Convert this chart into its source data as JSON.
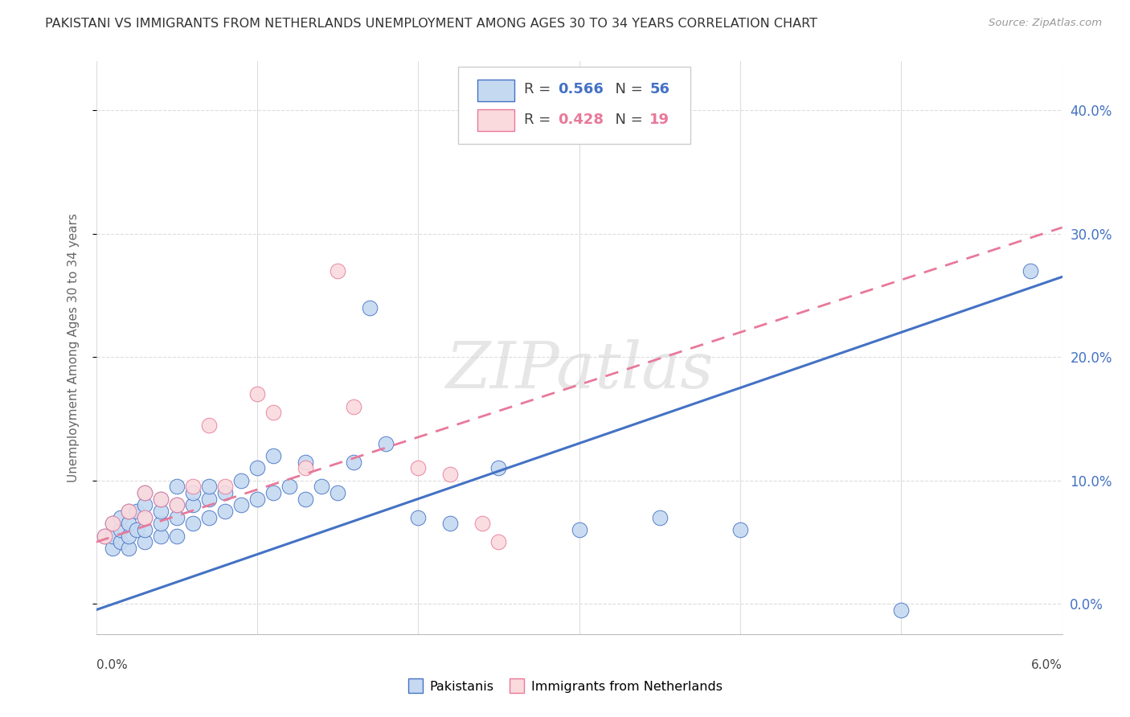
{
  "title": "PAKISTANI VS IMMIGRANTS FROM NETHERLANDS UNEMPLOYMENT AMONG AGES 30 TO 34 YEARS CORRELATION CHART",
  "source": "Source: ZipAtlas.com",
  "ylabel": "Unemployment Among Ages 30 to 34 years",
  "r_pakistani": 0.566,
  "n_pakistani": 56,
  "r_netherlands": 0.428,
  "n_netherlands": 19,
  "color_pakistani_fill": "#c5d9f1",
  "color_pakistani_edge": "#4472c4",
  "color_netherlands_fill": "#fadadd",
  "color_netherlands_edge": "#e8799a",
  "color_line_pakistani": "#4472c4",
  "color_line_netherlands": "#e8799a",
  "xlim": [
    0.0,
    0.06
  ],
  "ylim": [
    -0.025,
    0.44
  ],
  "yticks": [
    0.0,
    0.1,
    0.2,
    0.3,
    0.4
  ],
  "yticklabels_right": [
    "0.0%",
    "10.0%",
    "20.0%",
    "30.0%",
    "40.0%"
  ],
  "pakistani_x": [
    0.0005,
    0.001,
    0.001,
    0.001,
    0.0015,
    0.0015,
    0.0015,
    0.002,
    0.002,
    0.002,
    0.002,
    0.0025,
    0.0025,
    0.003,
    0.003,
    0.003,
    0.003,
    0.003,
    0.004,
    0.004,
    0.004,
    0.004,
    0.005,
    0.005,
    0.005,
    0.005,
    0.006,
    0.006,
    0.006,
    0.007,
    0.007,
    0.007,
    0.008,
    0.008,
    0.009,
    0.009,
    0.01,
    0.01,
    0.011,
    0.011,
    0.012,
    0.013,
    0.013,
    0.014,
    0.015,
    0.016,
    0.017,
    0.018,
    0.02,
    0.022,
    0.025,
    0.03,
    0.035,
    0.04,
    0.05,
    0.058
  ],
  "pakistani_y": [
    0.055,
    0.045,
    0.055,
    0.065,
    0.05,
    0.06,
    0.07,
    0.045,
    0.055,
    0.065,
    0.075,
    0.06,
    0.075,
    0.05,
    0.06,
    0.07,
    0.08,
    0.09,
    0.055,
    0.065,
    0.075,
    0.085,
    0.055,
    0.07,
    0.08,
    0.095,
    0.065,
    0.08,
    0.09,
    0.07,
    0.085,
    0.095,
    0.075,
    0.09,
    0.08,
    0.1,
    0.085,
    0.11,
    0.09,
    0.12,
    0.095,
    0.085,
    0.115,
    0.095,
    0.09,
    0.115,
    0.24,
    0.13,
    0.07,
    0.065,
    0.11,
    0.06,
    0.07,
    0.06,
    -0.005,
    0.27
  ],
  "netherlands_x": [
    0.0005,
    0.001,
    0.002,
    0.003,
    0.003,
    0.004,
    0.005,
    0.006,
    0.007,
    0.008,
    0.01,
    0.011,
    0.013,
    0.015,
    0.016,
    0.02,
    0.022,
    0.024,
    0.025
  ],
  "netherlands_y": [
    0.055,
    0.065,
    0.075,
    0.07,
    0.09,
    0.085,
    0.08,
    0.095,
    0.145,
    0.095,
    0.17,
    0.155,
    0.11,
    0.27,
    0.16,
    0.11,
    0.105,
    0.065,
    0.05
  ],
  "pak_line_x0": 0.0,
  "pak_line_y0": -0.005,
  "pak_line_x1": 0.06,
  "pak_line_y1": 0.265,
  "ned_line_x0": 0.0,
  "ned_line_y0": 0.05,
  "ned_line_x1": 0.06,
  "ned_line_y1": 0.305,
  "watermark": "ZIPatlas",
  "background_color": "#ffffff",
  "grid_color": "#dddddd"
}
